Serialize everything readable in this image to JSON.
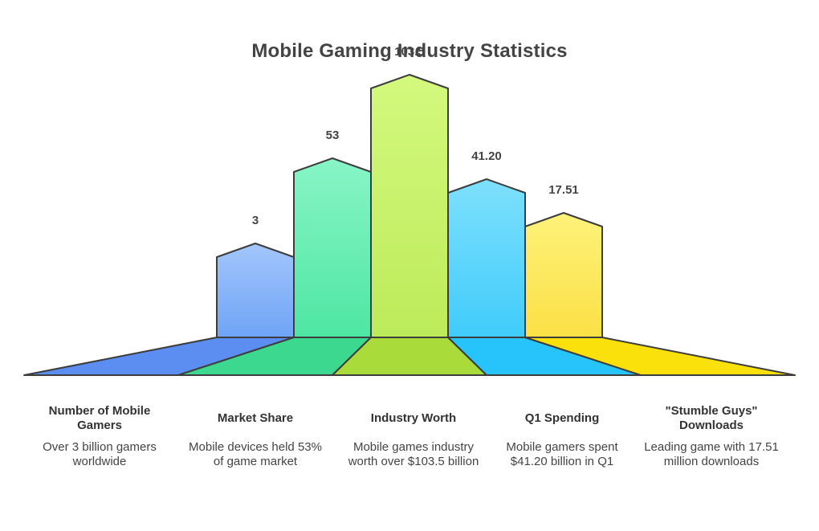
{
  "title": "Mobile Gaming Industry Statistics",
  "chart_data": {
    "type": "bar",
    "categories": [
      "Number of Mobile Gamers",
      "Market Share",
      "Industry Worth",
      "Q1 Spending",
      "\"Stumble Guys\" Downloads"
    ],
    "values": [
      3,
      53,
      103.5,
      41.2,
      17.51
    ],
    "value_labels": [
      "3",
      "53",
      "103.5",
      "41.20",
      "17.51"
    ],
    "descriptions": [
      "Over 3 billion gamers worldwide",
      "Mobile devices held 53% of game market",
      "Mobile games industry worth over $103.5 billion",
      "Mobile gamers spent $41.20 billion in Q1",
      "Leading game with 17.51 million downloads"
    ],
    "colors": {
      "bars_top": [
        "#a3c6fb",
        "#88f5c6",
        "#d4f97e",
        "#7ee0fc",
        "#fdf27a"
      ],
      "bars_bottom": [
        "#6fa4f6",
        "#4ee6a2",
        "#bceb5a",
        "#40ccfb",
        "#fce046"
      ],
      "bases": [
        "#5b8ef0",
        "#3cd88f",
        "#a9dc3a",
        "#27c4fb",
        "#fbe10c"
      ]
    }
  }
}
